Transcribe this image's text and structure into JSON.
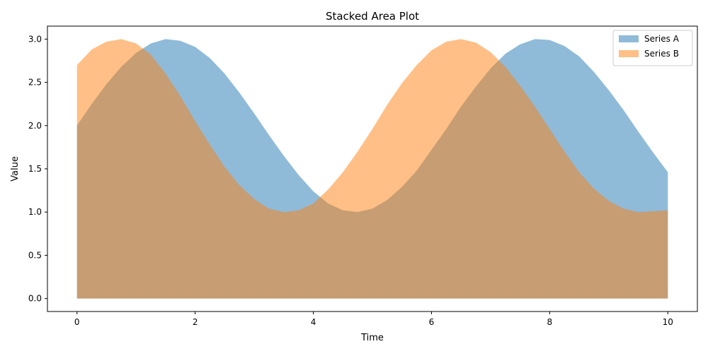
{
  "chart_data": {
    "type": "area",
    "title": "Stacked Area Plot",
    "xlabel": "Time",
    "ylabel": "Value",
    "xlim": [
      -0.5,
      10.5
    ],
    "ylim": [
      -0.15,
      3.15
    ],
    "x_ticks": [
      0,
      2,
      4,
      6,
      8,
      10
    ],
    "x_tick_labels": [
      "0",
      "2",
      "4",
      "6",
      "8",
      "10"
    ],
    "y_ticks": [
      0,
      0.5,
      1.0,
      1.5,
      2.0,
      2.5,
      3.0
    ],
    "y_tick_labels": [
      "0.0",
      "0.5",
      "1.0",
      "1.5",
      "2.0",
      "2.5",
      "3.0"
    ],
    "grid": false,
    "legend_position": "top-right",
    "x": [
      0,
      0.25,
      0.5,
      0.75,
      1,
      1.25,
      1.5,
      1.75,
      2,
      2.25,
      2.5,
      2.75,
      3,
      3.25,
      3.5,
      3.75,
      4,
      4.25,
      4.5,
      4.75,
      5,
      5.25,
      5.5,
      5.75,
      6,
      6.25,
      6.5,
      6.75,
      7,
      7.25,
      7.5,
      7.75,
      8,
      8.25,
      8.5,
      8.75,
      9,
      9.25,
      9.5,
      9.75,
      10
    ],
    "series": [
      {
        "name": "Series A",
        "color": "#1f77b4",
        "opacity": 0.5,
        "values": [
          2.0,
          2.25,
          2.48,
          2.68,
          2.84,
          2.95,
          3.0,
          2.98,
          2.91,
          2.78,
          2.6,
          2.38,
          2.14,
          1.89,
          1.65,
          1.43,
          1.24,
          1.1,
          1.02,
          1.0,
          1.04,
          1.14,
          1.29,
          1.48,
          1.72,
          1.96,
          2.22,
          2.45,
          2.66,
          2.83,
          2.94,
          3.0,
          2.99,
          2.92,
          2.8,
          2.62,
          2.41,
          2.18,
          1.93,
          1.69,
          1.46
        ]
      },
      {
        "name": "Series B",
        "color": "#ff7f0e",
        "opacity": 0.5,
        "values": [
          2.7,
          2.88,
          2.97,
          3.0,
          2.95,
          2.82,
          2.6,
          2.34,
          2.05,
          1.78,
          1.52,
          1.31,
          1.15,
          1.04,
          1.0,
          1.02,
          1.1,
          1.26,
          1.46,
          1.7,
          1.96,
          2.24,
          2.49,
          2.7,
          2.87,
          2.97,
          3.0,
          2.96,
          2.85,
          2.68,
          2.46,
          2.22,
          1.96,
          1.7,
          1.46,
          1.27,
          1.13,
          1.04,
          1.0,
          1.01,
          1.02
        ]
      }
    ]
  }
}
